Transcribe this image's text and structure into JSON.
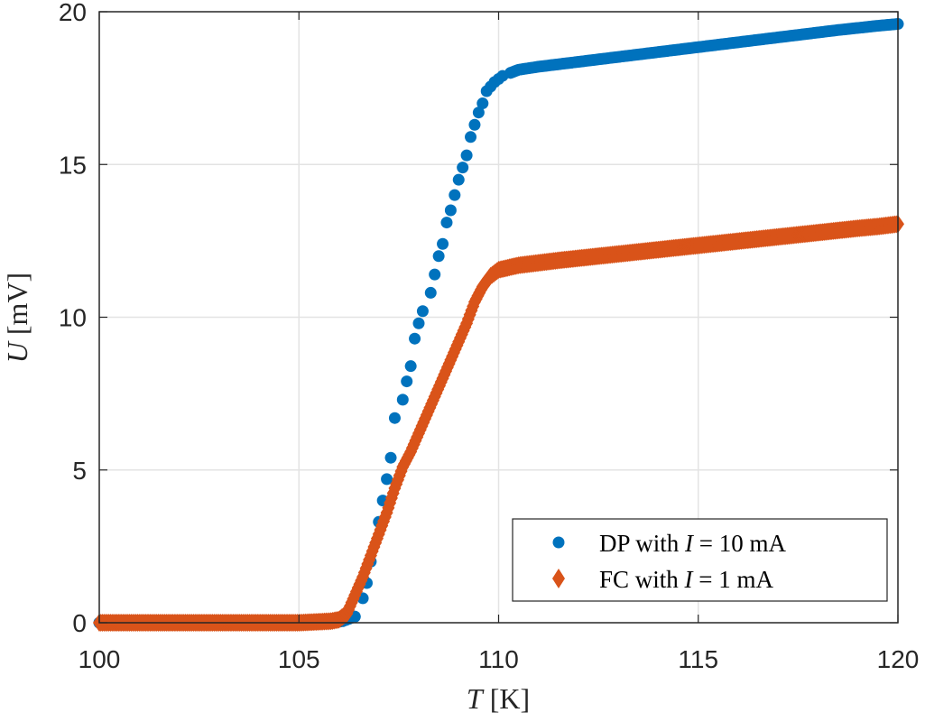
{
  "chart_data": {
    "type": "scatter",
    "title": "",
    "xlabel": "T [K]",
    "xlabel_var": "T",
    "xlabel_unit": "[K]",
    "ylabel": "U [mV]",
    "ylabel_var": "U",
    "ylabel_unit": "[mV]",
    "xlim": [
      100,
      120
    ],
    "ylim": [
      0,
      20
    ],
    "xticks": [
      100,
      105,
      110,
      115,
      120
    ],
    "yticks": [
      0,
      5,
      10,
      15,
      20
    ],
    "grid": true,
    "legend_position": "lower right",
    "series": [
      {
        "name": "DP with I = 10 mA",
        "legend_prefix": "DP with ",
        "legend_var": "I",
        "legend_suffix": " = 10 mA",
        "marker": "circle",
        "color": "#0072BD",
        "points": [
          [
            100.0,
            0.0
          ],
          [
            100.2,
            0.0
          ],
          [
            100.4,
            0.0
          ],
          [
            100.6,
            0.0
          ],
          [
            100.8,
            0.0
          ],
          [
            101.0,
            0.0
          ],
          [
            101.4,
            0.0
          ],
          [
            101.8,
            0.0
          ],
          [
            102.2,
            0.0
          ],
          [
            102.6,
            0.0
          ],
          [
            103.0,
            0.0
          ],
          [
            103.4,
            0.0
          ],
          [
            103.8,
            0.0
          ],
          [
            104.2,
            0.0
          ],
          [
            104.6,
            0.0
          ],
          [
            105.0,
            0.0
          ],
          [
            105.4,
            0.0
          ],
          [
            105.8,
            0.0
          ],
          [
            106.1,
            0.05
          ],
          [
            106.4,
            0.2
          ],
          [
            106.6,
            0.8
          ],
          [
            106.7,
            1.3
          ],
          [
            106.8,
            2.0
          ],
          [
            107.0,
            3.3
          ],
          [
            107.1,
            4.0
          ],
          [
            107.2,
            4.7
          ],
          [
            107.3,
            5.4
          ],
          [
            107.4,
            6.7
          ],
          [
            107.6,
            7.3
          ],
          [
            107.7,
            7.9
          ],
          [
            107.8,
            8.4
          ],
          [
            107.9,
            9.3
          ],
          [
            108.0,
            9.8
          ],
          [
            108.1,
            10.2
          ],
          [
            108.3,
            10.8
          ],
          [
            108.4,
            11.4
          ],
          [
            108.5,
            12.0
          ],
          [
            108.6,
            12.4
          ],
          [
            108.7,
            13.1
          ],
          [
            108.8,
            13.5
          ],
          [
            108.9,
            14.0
          ],
          [
            109.0,
            14.5
          ],
          [
            109.1,
            14.9
          ],
          [
            109.2,
            15.3
          ],
          [
            109.3,
            15.9
          ],
          [
            109.4,
            16.3
          ],
          [
            109.5,
            16.7
          ],
          [
            109.6,
            17.0
          ],
          [
            109.7,
            17.4
          ],
          [
            109.8,
            17.55
          ],
          [
            109.9,
            17.7
          ],
          [
            110.0,
            17.8
          ],
          [
            110.1,
            17.9
          ],
          [
            110.3,
            18.0
          ],
          [
            110.5,
            18.1
          ],
          [
            111.0,
            18.2
          ],
          [
            111.5,
            18.28
          ],
          [
            112.0,
            18.36
          ],
          [
            112.5,
            18.44
          ],
          [
            113.0,
            18.52
          ],
          [
            113.5,
            18.6
          ],
          [
            114.0,
            18.68
          ],
          [
            114.5,
            18.76
          ],
          [
            115.0,
            18.84
          ],
          [
            115.5,
            18.92
          ],
          [
            116.0,
            19.0
          ],
          [
            116.5,
            19.08
          ],
          [
            117.0,
            19.16
          ],
          [
            117.5,
            19.24
          ],
          [
            118.0,
            19.32
          ],
          [
            118.5,
            19.4
          ],
          [
            119.0,
            19.47
          ],
          [
            119.5,
            19.54
          ],
          [
            120.0,
            19.6
          ]
        ]
      },
      {
        "name": "FC with I = 1 mA",
        "legend_prefix": "FC with ",
        "legend_var": "I",
        "legend_suffix": " = 1 mA",
        "marker": "diamond",
        "color": "#D95319",
        "points": [
          [
            100.0,
            0.0
          ],
          [
            101.0,
            0.0
          ],
          [
            102.0,
            0.0
          ],
          [
            103.0,
            0.0
          ],
          [
            104.0,
            0.0
          ],
          [
            105.0,
            0.0
          ],
          [
            105.8,
            0.05
          ],
          [
            106.0,
            0.1
          ],
          [
            106.2,
            0.3
          ],
          [
            106.4,
            0.9
          ],
          [
            106.6,
            1.5
          ],
          [
            106.8,
            2.2
          ],
          [
            107.0,
            2.9
          ],
          [
            107.2,
            3.6
          ],
          [
            107.4,
            4.4
          ],
          [
            107.6,
            5.1
          ],
          [
            107.8,
            5.6
          ],
          [
            108.0,
            6.2
          ],
          [
            108.2,
            6.8
          ],
          [
            108.4,
            7.4
          ],
          [
            108.6,
            8.0
          ],
          [
            108.8,
            8.6
          ],
          [
            109.0,
            9.2
          ],
          [
            109.2,
            9.8
          ],
          [
            109.4,
            10.5
          ],
          [
            109.6,
            11.0
          ],
          [
            109.8,
            11.35
          ],
          [
            110.0,
            11.55
          ],
          [
            110.5,
            11.7
          ],
          [
            111.0,
            11.78
          ],
          [
            111.5,
            11.86
          ],
          [
            112.0,
            11.93
          ],
          [
            112.5,
            12.0
          ],
          [
            113.0,
            12.07
          ],
          [
            113.5,
            12.14
          ],
          [
            114.0,
            12.21
          ],
          [
            114.5,
            12.28
          ],
          [
            115.0,
            12.35
          ],
          [
            115.5,
            12.42
          ],
          [
            116.0,
            12.49
          ],
          [
            116.5,
            12.56
          ],
          [
            117.0,
            12.63
          ],
          [
            117.5,
            12.7
          ],
          [
            118.0,
            12.77
          ],
          [
            118.5,
            12.84
          ],
          [
            119.0,
            12.91
          ],
          [
            119.5,
            12.97
          ],
          [
            120.0,
            13.05
          ]
        ]
      }
    ]
  }
}
